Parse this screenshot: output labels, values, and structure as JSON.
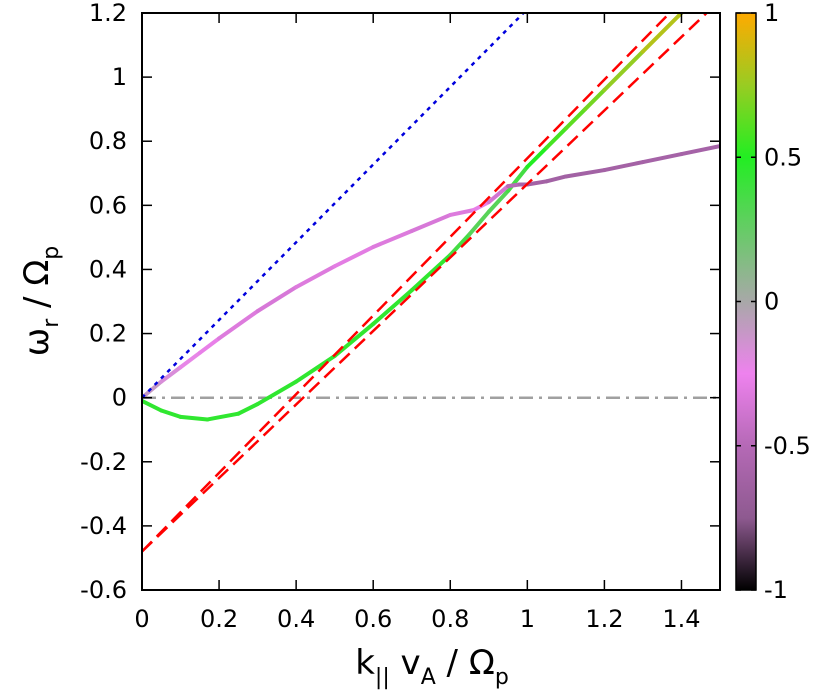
{
  "chart_data": {
    "type": "line",
    "xlabel": {
      "main": "k",
      "sub1": "||",
      "mid": " v",
      "sub2": "A",
      "tail": " / Ω",
      "sub3": "p"
    },
    "ylabel": {
      "main": "ω",
      "sub1": "r",
      "tail": " / Ω",
      "sub2": "p"
    },
    "xlim": [
      0,
      1.5
    ],
    "ylim": [
      -0.6,
      1.2
    ],
    "xticks": [
      0,
      0.2,
      0.4,
      0.6,
      0.8,
      1,
      1.2,
      1.4
    ],
    "xtick_labels": [
      "0",
      "0.2",
      "0.4",
      "0.6",
      "0.8",
      "1",
      "1.2",
      "1.4"
    ],
    "yticks": [
      -0.6,
      -0.4,
      -0.2,
      0,
      0.2,
      0.4,
      0.6,
      0.8,
      1,
      1.2
    ],
    "ytick_labels": [
      "-0.6",
      "-0.4",
      "-0.2",
      "0",
      "0.2",
      "0.4",
      "0.6",
      "0.8",
      "1",
      "1.2"
    ],
    "colorbar": {
      "min": -1,
      "max": 1,
      "ticks": [
        -1,
        -0.5,
        0,
        0.5,
        1
      ],
      "tick_labels": [
        "-1",
        "-0.5",
        "0",
        "0.5",
        "1"
      ],
      "stops": [
        {
          "v": -1.0,
          "color": "#000000"
        },
        {
          "v": -0.75,
          "color": "#8e5a90"
        },
        {
          "v": -0.5,
          "color": "#b569b6"
        },
        {
          "v": -0.25,
          "color": "#ee82ee"
        },
        {
          "v": 0.0,
          "color": "#a8a8a8"
        },
        {
          "v": 0.25,
          "color": "#66cc66"
        },
        {
          "v": 0.5,
          "color": "#22ee22"
        },
        {
          "v": 0.75,
          "color": "#99cc22"
        },
        {
          "v": 1.0,
          "color": "#ffaa00"
        }
      ]
    },
    "series": [
      {
        "style": "colored",
        "points": [
          [
            0.0,
            0.0,
            -0.05
          ],
          [
            0.05,
            0.05,
            -0.15
          ],
          [
            0.1,
            0.095,
            -0.2
          ],
          [
            0.15,
            0.14,
            -0.25
          ],
          [
            0.2,
            0.185,
            -0.3
          ],
          [
            0.3,
            0.27,
            -0.35
          ],
          [
            0.4,
            0.345,
            -0.35
          ],
          [
            0.5,
            0.41,
            -0.3
          ],
          [
            0.6,
            0.47,
            -0.3
          ],
          [
            0.7,
            0.52,
            -0.35
          ],
          [
            0.8,
            0.57,
            -0.35
          ],
          [
            0.86,
            0.585,
            -0.3
          ],
          [
            0.9,
            0.61,
            -0.25
          ]
        ]
      },
      {
        "style": "colored",
        "points": [
          [
            0.0,
            -0.01,
            0.45
          ],
          [
            0.05,
            -0.04,
            0.45
          ],
          [
            0.1,
            -0.06,
            0.45
          ],
          [
            0.17,
            -0.068,
            0.45
          ],
          [
            0.25,
            -0.05,
            0.45
          ],
          [
            0.3,
            -0.02,
            0.45
          ],
          [
            0.4,
            0.05,
            0.45
          ],
          [
            0.5,
            0.13,
            0.45
          ],
          [
            0.6,
            0.23,
            0.45
          ],
          [
            0.7,
            0.335,
            0.45
          ],
          [
            0.8,
            0.445,
            0.45
          ],
          [
            0.85,
            0.51,
            0.3
          ],
          [
            0.9,
            0.58,
            0.3
          ],
          [
            0.95,
            0.645,
            0.3
          ],
          [
            1.0,
            0.72,
            0.45
          ],
          [
            1.05,
            0.78,
            0.55
          ],
          [
            1.1,
            0.84,
            0.6
          ],
          [
            1.15,
            0.9,
            0.65
          ],
          [
            1.2,
            0.96,
            0.7
          ],
          [
            1.3,
            1.08,
            0.78
          ],
          [
            1.4,
            1.2,
            0.85
          ]
        ]
      },
      {
        "style": "colored",
        "points": [
          [
            0.9,
            0.61,
            -0.3
          ],
          [
            0.95,
            0.66,
            -0.45
          ],
          [
            0.98,
            0.665,
            -0.55
          ],
          [
            1.0,
            0.665,
            -0.6
          ],
          [
            1.05,
            0.675,
            -0.62
          ],
          [
            1.1,
            0.69,
            -0.62
          ],
          [
            1.2,
            0.71,
            -0.62
          ],
          [
            1.3,
            0.735,
            -0.6
          ],
          [
            1.4,
            0.76,
            -0.6
          ],
          [
            1.5,
            0.785,
            -0.6
          ]
        ]
      },
      {
        "style": "dashed",
        "color": "#ff0000",
        "points": [
          [
            0.0,
            -0.48
          ],
          [
            1.5,
            1.24
          ]
        ]
      },
      {
        "style": "dashed",
        "color": "#ff0000",
        "points": [
          [
            0.0,
            -0.48
          ],
          [
            1.5,
            1.36
          ]
        ]
      },
      {
        "style": "dotted",
        "color": "#0000dd",
        "points": [
          [
            0.0,
            0.0
          ],
          [
            0.99,
            1.2
          ]
        ]
      },
      {
        "style": "dashdot",
        "color": "#a0a0a0",
        "points": [
          [
            0.0,
            0.0
          ],
          [
            1.5,
            0.0
          ]
        ]
      }
    ]
  }
}
